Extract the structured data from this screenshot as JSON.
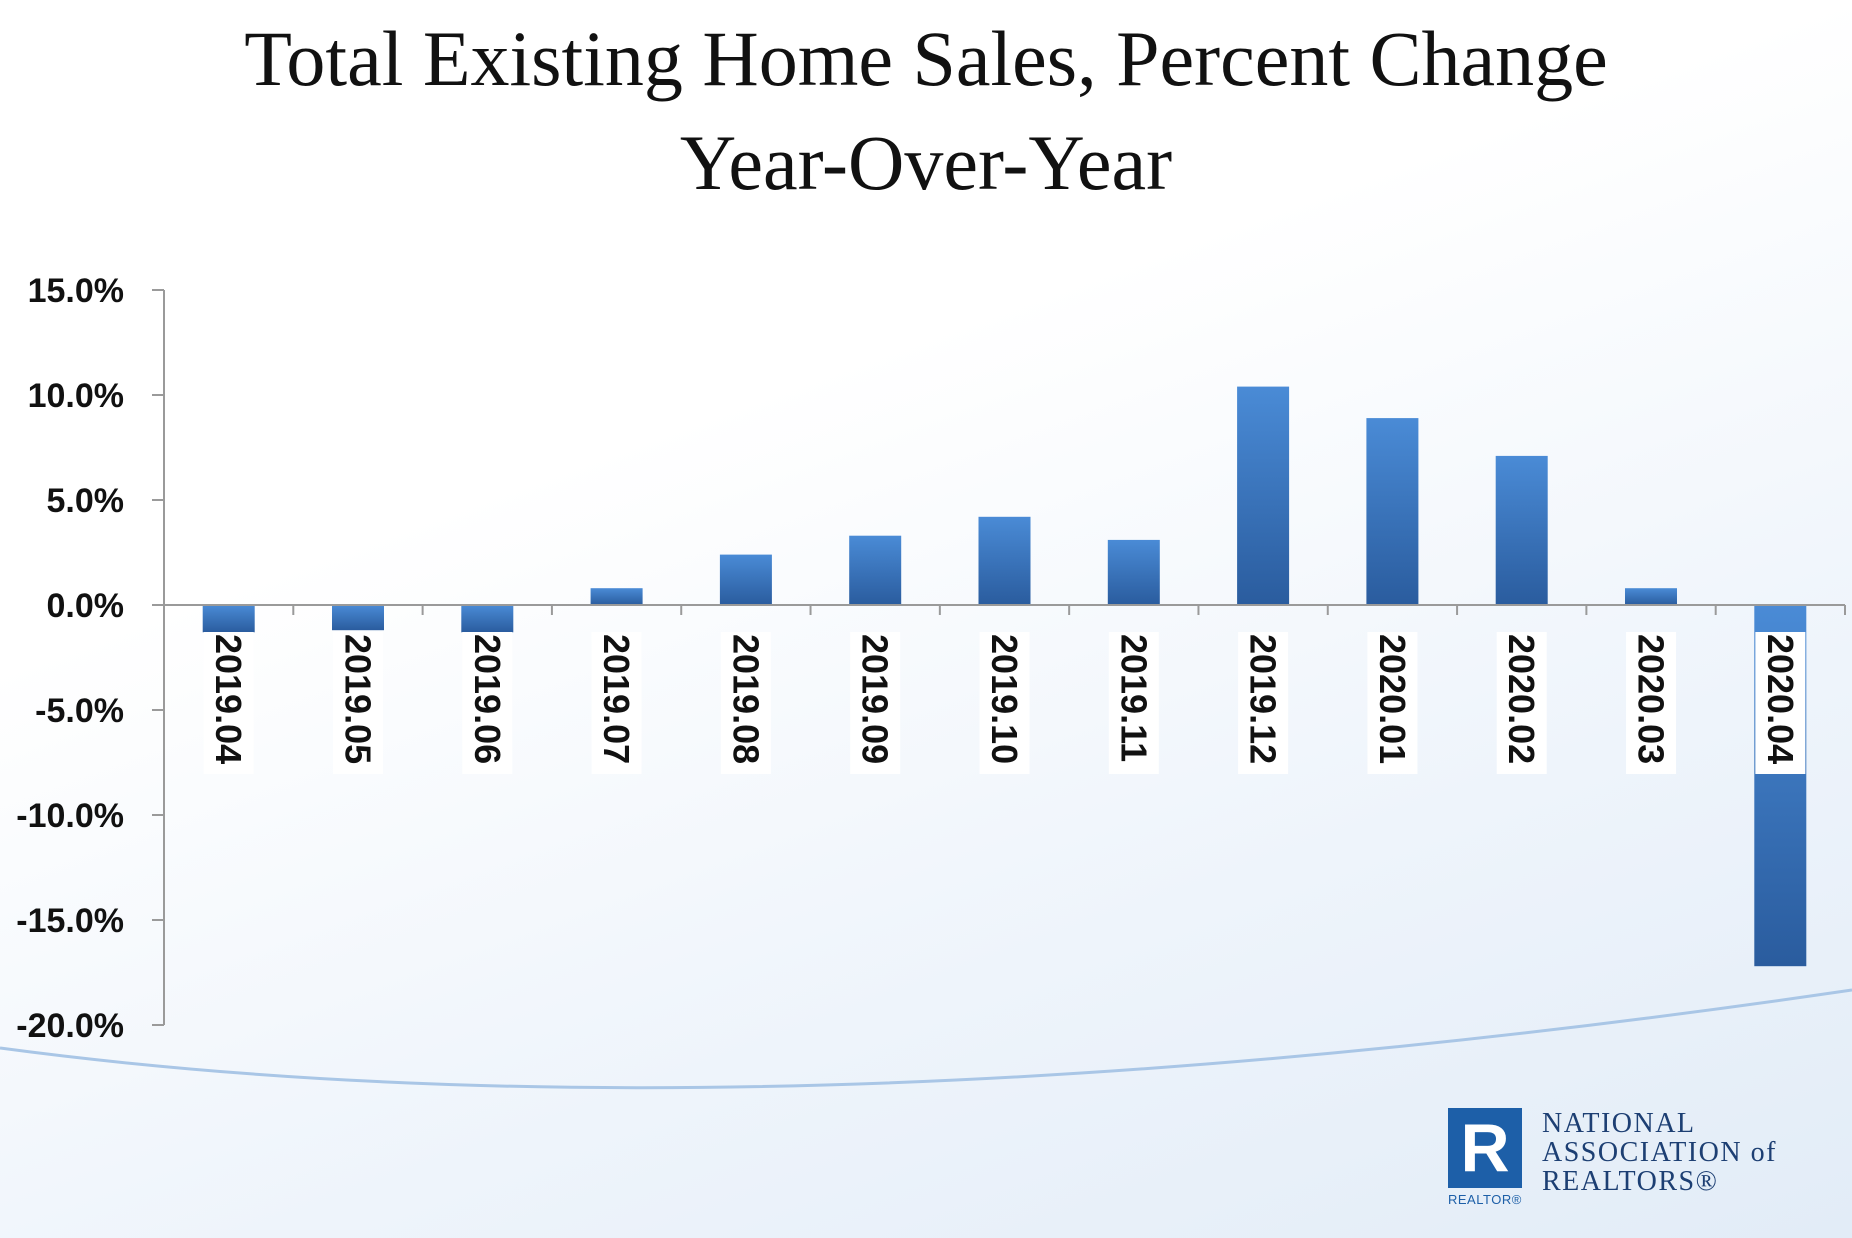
{
  "slide": {
    "title_line_1": "Total Existing Home Sales, Percent Change",
    "title_line_2": "Year-Over-Year"
  },
  "logo": {
    "mark_letter": "R",
    "mark_word": "REALTOR®",
    "line_1": "NATIONAL",
    "line_2": "ASSOCIATION of",
    "line_3": "REALTORS®"
  },
  "colors": {
    "bar_light": "#4a8bd6",
    "bar_dark": "#2a5c9e",
    "axis": "#9a9a9a",
    "background_curve": "#a9c6e6"
  },
  "chart_data": {
    "type": "bar",
    "title": "Total Existing Home Sales, Percent Change Year-Over-Year",
    "xlabel": "",
    "ylabel": "",
    "ylim": [
      -20,
      15
    ],
    "y_ticks": [
      15,
      10,
      5,
      0,
      -5,
      -10,
      -15,
      -20
    ],
    "y_tick_labels": [
      "15.0%",
      "10.0%",
      "5.0%",
      "0.0%",
      "-5.0%",
      "-10.0%",
      "-15.0%",
      "-20.0%"
    ],
    "categories": [
      "2019.04",
      "2019.05",
      "2019.06",
      "2019.07",
      "2019.08",
      "2019.09",
      "2019.10",
      "2019.11",
      "2019.12",
      "2020.01",
      "2020.02",
      "2020.03",
      "2020.04"
    ],
    "values": [
      -1.3,
      -1.2,
      -1.3,
      0.8,
      2.4,
      3.3,
      4.2,
      3.1,
      10.4,
      8.9,
      7.1,
      0.8,
      -17.2
    ],
    "grid": false,
    "legend": "none"
  }
}
